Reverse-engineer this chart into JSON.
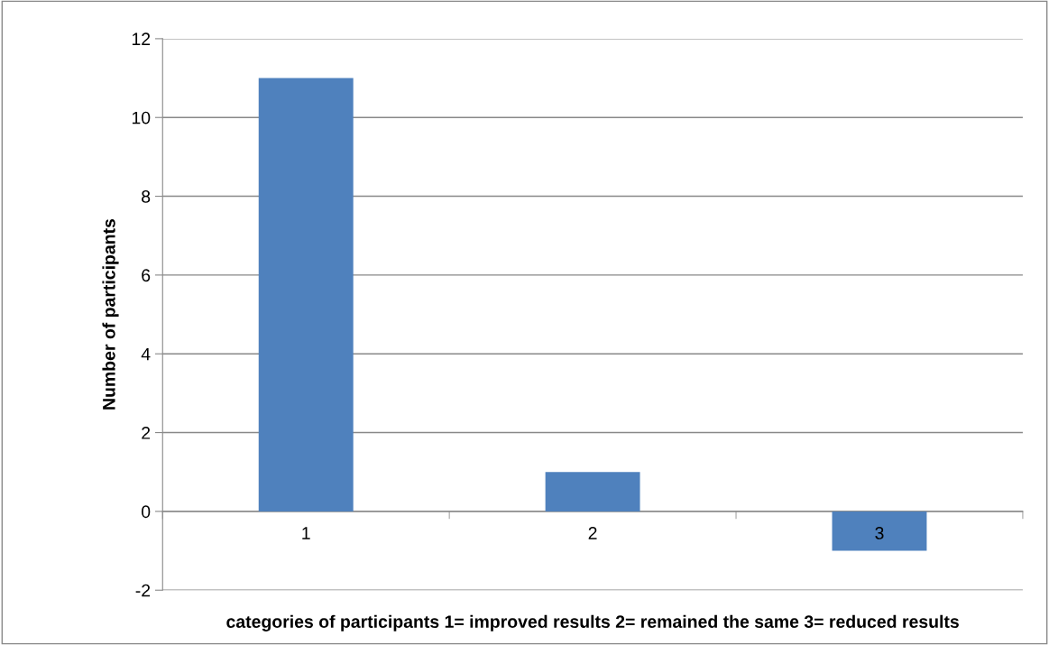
{
  "chart_data": {
    "type": "bar",
    "xlabel": "categories of participants 1= improved results 2= remained the same 3= reduced results",
    "ylabel": "Number of participants",
    "categories": [
      "1",
      "2",
      "3"
    ],
    "values": [
      11,
      1,
      -1
    ],
    "color": "#4f81bd",
    "ylim": [
      -2,
      12
    ],
    "yticks": [
      {
        "value": -2,
        "label": "-2"
      },
      0,
      2,
      4,
      6,
      8,
      10,
      12
    ],
    "grid": "y"
  }
}
